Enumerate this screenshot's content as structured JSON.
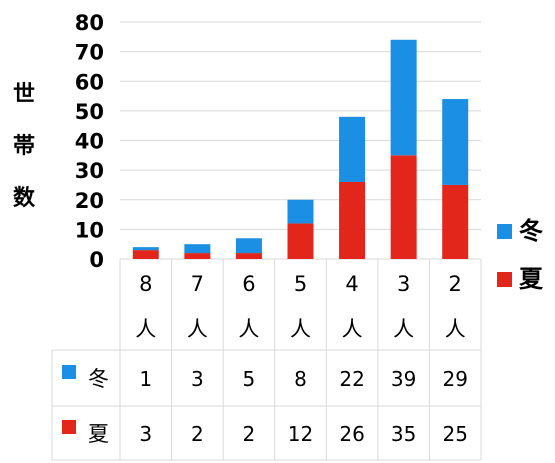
{
  "chart_data": {
    "type": "bar",
    "stacked": true,
    "categories": [
      "8\n人",
      "7\n人",
      "6\n人",
      "5\n人",
      "4\n人",
      "3\n人",
      "2\n人"
    ],
    "series": [
      {
        "name": "夏",
        "color": "#e3261b",
        "values": [
          3,
          2,
          2,
          12,
          26,
          35,
          25
        ]
      },
      {
        "name": "冬",
        "color": "#1a8fe3",
        "values": [
          1,
          3,
          5,
          8,
          22,
          39,
          29
        ]
      }
    ],
    "ylabel": "世帯数",
    "ylim": [
      0,
      80
    ],
    "yticks": [
      0,
      10,
      20,
      30,
      40,
      50,
      60,
      70,
      80
    ],
    "grid": true,
    "legend": "right",
    "data_table": true
  },
  "ylabel_chars": [
    "世",
    "帯",
    "数"
  ],
  "legend": [
    {
      "label": "冬",
      "color": "#1a8fe3"
    },
    {
      "label": "夏",
      "color": "#e3261b"
    }
  ]
}
